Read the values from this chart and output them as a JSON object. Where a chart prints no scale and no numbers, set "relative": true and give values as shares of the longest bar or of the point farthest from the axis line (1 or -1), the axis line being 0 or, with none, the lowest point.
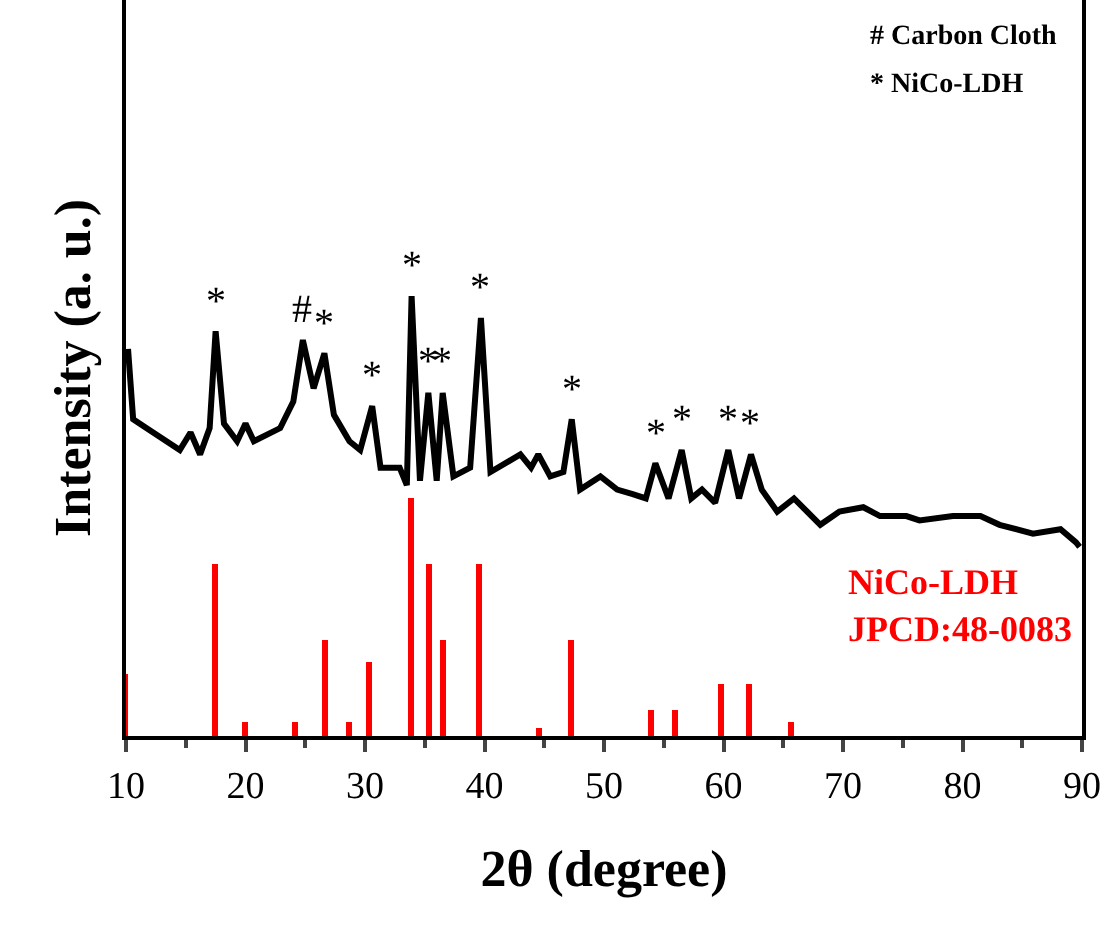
{
  "chart_data": {
    "type": "line",
    "relative": true,
    "xlabel": "2θ (degree)",
    "ylabel": "Intensity (a. u.)",
    "xlim": [
      10,
      90
    ],
    "xticks": [
      10,
      20,
      30,
      40,
      50,
      60,
      70,
      80,
      90
    ],
    "legend": false,
    "series": [
      {
        "color": "#000000",
        "x": [
          10.17,
          10.6,
          11.7,
          14.5,
          15.4,
          16.2,
          17.0,
          17.5,
          18.2,
          19.3,
          20.0,
          20.7,
          22.9,
          24.0,
          24.8,
          25.7,
          26.6,
          27.4,
          28.7,
          29.6,
          30.6,
          31.3,
          32.9,
          33.5,
          33.9,
          34.6,
          35.3,
          36.0,
          36.5,
          37.4,
          38.8,
          39.7,
          40.5,
          43.0,
          43.9,
          44.5,
          45.5,
          46.6,
          47.3,
          48.0,
          49.7,
          51.1,
          52.4,
          53.5,
          54.3,
          55.4,
          56.5,
          57.3,
          58.2,
          59.3,
          60.4,
          61.3,
          62.3,
          63.2,
          64.5,
          65.9,
          68.1,
          69.7,
          71.7,
          73.1,
          75.3,
          76.4,
          79.2,
          81.5,
          83.1,
          85.9,
          88.2,
          89.5,
          89.8
        ],
        "values": [
          0.88,
          0.72,
          0.7,
          0.65,
          0.69,
          0.64,
          0.7,
          0.92,
          0.71,
          0.67,
          0.71,
          0.67,
          0.7,
          0.76,
          0.9,
          0.79,
          0.87,
          0.73,
          0.67,
          0.65,
          0.75,
          0.61,
          0.61,
          0.57,
          1,
          0.58,
          0.78,
          0.58,
          0.78,
          0.59,
          0.61,
          0.95,
          0.6,
          0.64,
          0.61,
          0.64,
          0.59,
          0.6,
          0.72,
          0.56,
          0.59,
          0.56,
          0.55,
          0.54,
          0.62,
          0.54,
          0.65,
          0.54,
          0.56,
          0.53,
          0.65,
          0.54,
          0.64,
          0.56,
          0.51,
          0.54,
          0.48,
          0.51,
          0.52,
          0.5,
          0.5,
          0.49,
          0.5,
          0.5,
          0.48,
          0.46,
          0.47,
          0.44,
          0.43
        ]
      },
      {
        "type": "bar",
        "color": "#ff0000",
        "x": [
          10.0,
          17.5,
          20.0,
          24.2,
          26.7,
          28.7,
          30.4,
          33.8,
          35.4,
          36.5,
          39.5,
          44.6,
          47.3,
          54.0,
          55.9,
          59.8,
          62.1,
          65.6
        ],
        "values": [
          0.14,
          0.39,
          0.03,
          0.03,
          0.22,
          0.03,
          0.17,
          0.54,
          0.39,
          0.22,
          0.39,
          0.02,
          0.22,
          0.06,
          0.06,
          0.12,
          0.12,
          0.03
        ]
      }
    ],
    "annotations": [
      "# Carbon Cloth",
      "* NiCo-LDH",
      "NiCo-LDH\nJPCD:48-0083",
      {
        "text": "*",
        "x": 17.5,
        "y": 0.92
      },
      {
        "text": "#",
        "x": 24.8,
        "y": 0.9
      },
      {
        "text": "*",
        "x": 26.6,
        "y": 0.87
      },
      {
        "text": "*",
        "x": 30.6,
        "y": 0.75
      },
      {
        "text": "*",
        "x": 33.9,
        "y": 1
      },
      {
        "text": "*",
        "x": 35.3,
        "y": 0.78
      },
      {
        "text": "*",
        "x": 36.5,
        "y": 0.78
      },
      {
        "text": "*",
        "x": 39.7,
        "y": 0.95
      },
      {
        "text": "*",
        "x": 47.3,
        "y": 0.72
      },
      {
        "text": "*",
        "x": 54.3,
        "y": 0.62
      },
      {
        "text": "*",
        "x": 56.5,
        "y": 0.65
      },
      {
        "text": "*",
        "x": 60.4,
        "y": 0.65
      },
      {
        "text": "*",
        "x": 62.3,
        "y": 0.64
      }
    ]
  }
}
